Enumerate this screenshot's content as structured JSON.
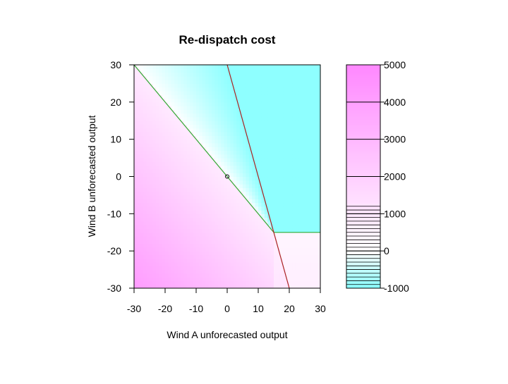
{
  "chart_data": {
    "type": "heatmap",
    "title": "Re-dispatch cost",
    "xlabel": "Wind A unforecasted output",
    "ylabel": "Wind B unforecasted output",
    "xlim": [
      -30,
      30
    ],
    "ylim": [
      -30,
      30
    ],
    "x_ticks": [
      -30,
      -20,
      -10,
      0,
      10,
      20,
      30
    ],
    "y_ticks": [
      -30,
      -20,
      -10,
      0,
      10,
      20,
      30
    ],
    "colorbar": {
      "range": [
        -1000,
        5000
      ],
      "ticks": [
        -1000,
        0,
        1000,
        2000,
        3000,
        4000,
        5000
      ],
      "low_color": "#88ffff",
      "high_color": "#ff88ff",
      "mid_color": "#ffffff",
      "level_lines": [
        -1000,
        -900,
        -800,
        -700,
        -600,
        -500,
        -400,
        -300,
        -200,
        -100,
        0,
        100,
        200,
        300,
        400,
        500,
        600,
        700,
        800,
        900,
        1000,
        1100,
        1200
      ]
    },
    "boundary_lines": [
      {
        "color": "#33aa33",
        "points": [
          [
            -30,
            30
          ],
          [
            15,
            -15
          ],
          [
            30,
            -15
          ]
        ]
      },
      {
        "color": "#aa2222",
        "points": [
          [
            0,
            30
          ],
          [
            20,
            -30
          ]
        ]
      }
    ],
    "point": {
      "x": 0,
      "y": 0
    }
  }
}
